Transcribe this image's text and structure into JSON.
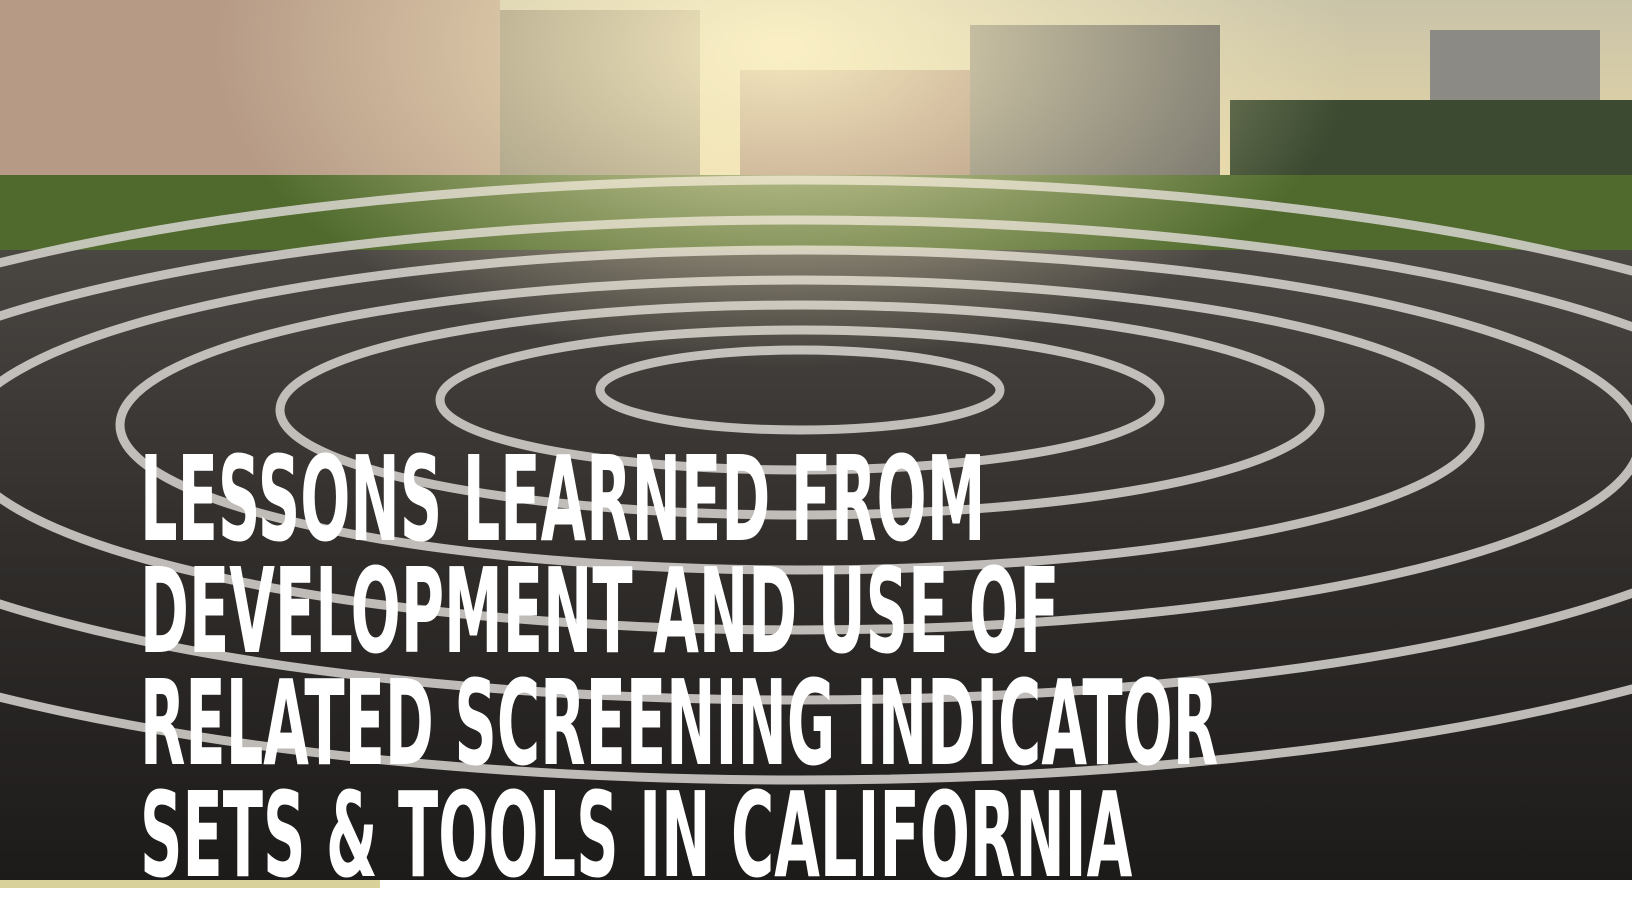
{
  "cover": {
    "title_lines": [
      "LESSONS LEARNED FROM",
      "DEVELOPMENT AND USE OF",
      "RELATED SCREENING INDICATOR",
      "SETS & TOOLS IN CALIFORNIA"
    ]
  }
}
